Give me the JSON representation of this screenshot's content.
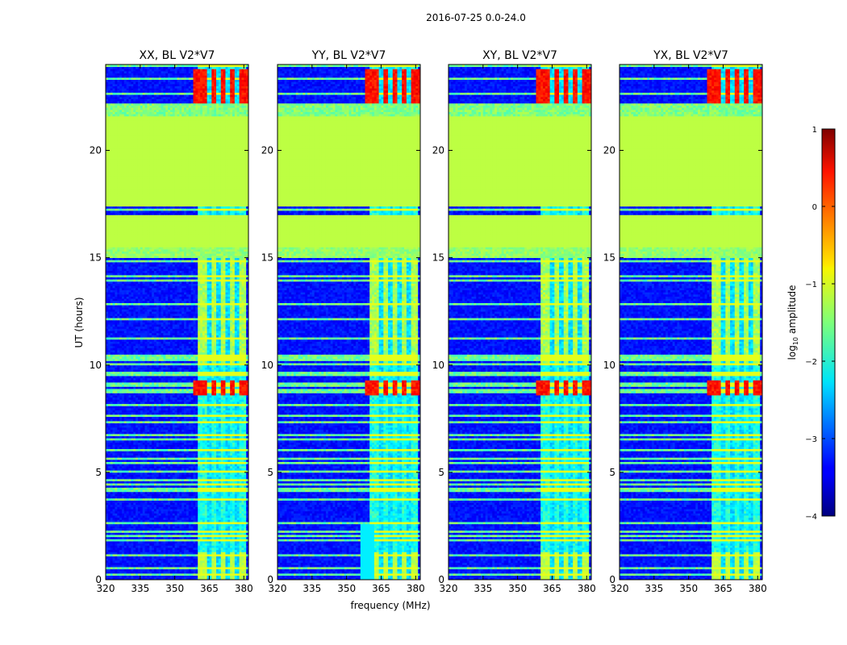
{
  "chart_data": {
    "type": "heatmap",
    "title": "2016-07-25 0.0-24.0",
    "xlabel": "frequency (MHz)",
    "ylabel": "UT (hours)",
    "xlim": [
      320,
      382
    ],
    "ylim": [
      0,
      24
    ],
    "xticks": [
      "320",
      "335",
      "350",
      "365",
      "380"
    ],
    "yticks": [
      "0",
      "5",
      "10",
      "15",
      "20"
    ],
    "colorbar": {
      "label": "log10 amplitude",
      "label_base": "log",
      "label_sub": "10",
      "label_rest": " amplitude",
      "range": [
        -4,
        1
      ],
      "ticks": [
        "1",
        "0",
        "−1",
        "−2",
        "−3",
        "−4"
      ],
      "colormap": "jet"
    },
    "panels": [
      {
        "title": "XX, BL V2*V7",
        "pol": "XX"
      },
      {
        "title": "YY, BL V2*V7",
        "pol": "YY"
      },
      {
        "title": "XY, BL V2*V7",
        "pol": "XY"
      },
      {
        "title": "YX, BL V2*V7",
        "pol": "YX"
      }
    ],
    "flagged_ut_ranges": [
      [
        15.5,
        17.0
      ],
      [
        17.4,
        21.6
      ]
    ],
    "flag_value": -1.2,
    "bright_band_mhz": [
      360,
      381
    ],
    "strong_rfi_ut_ranges": [
      [
        8.6,
        9.3
      ],
      [
        22.2,
        23.8
      ]
    ],
    "background_log_amplitude": -3.3
  }
}
